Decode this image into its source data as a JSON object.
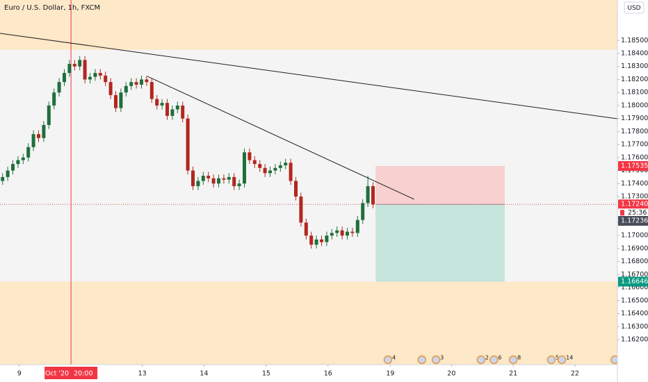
{
  "chart_data": {
    "type": "candlestick",
    "title": "Euro / U.S. Dollar, 1h, FXCM",
    "currency": "USD",
    "up_color": "#1f6f3c",
    "down_color": "#b3261e",
    "xlim": [
      0,
      240
    ],
    "ylim": [
      1.16008,
      1.18811
    ],
    "grid": false,
    "xticks": [
      {
        "value": 7.5,
        "label": "9"
      },
      {
        "value": 55.3,
        "label": "13"
      },
      {
        "value": 79.3,
        "label": "14"
      },
      {
        "value": 103.5,
        "label": "15"
      },
      {
        "value": 127.5,
        "label": "16"
      },
      {
        "value": 151.7,
        "label": "19"
      },
      {
        "value": 175.5,
        "label": "20"
      },
      {
        "value": 199.5,
        "label": "21"
      },
      {
        "value": 223.5,
        "label": "22"
      }
    ],
    "yticks": [
      {
        "value": 1.162,
        "label": "1.16200"
      },
      {
        "value": 1.163,
        "label": "1.16300"
      },
      {
        "value": 1.164,
        "label": "1.16400"
      },
      {
        "value": 1.165,
        "label": "1.16500"
      },
      {
        "value": 1.166,
        "label": "1.16600"
      },
      {
        "value": 1.167,
        "label": "1.16700"
      },
      {
        "value": 1.168,
        "label": "1.16800"
      },
      {
        "value": 1.169,
        "label": "1.16900"
      },
      {
        "value": 1.17,
        "label": "1.17000"
      },
      {
        "value": 1.171,
        "label": "1.17100"
      },
      {
        "value": 1.172,
        "label": "1.17200"
      },
      {
        "value": 1.173,
        "label": "1.17300"
      },
      {
        "value": 1.174,
        "label": "1.17400"
      },
      {
        "value": 1.175,
        "label": "1.17500"
      },
      {
        "value": 1.176,
        "label": "1.17600"
      },
      {
        "value": 1.177,
        "label": "1.17700"
      },
      {
        "value": 1.178,
        "label": "1.17800"
      },
      {
        "value": 1.179,
        "label": "1.17900"
      },
      {
        "value": 1.18,
        "label": "1.18000"
      },
      {
        "value": 1.181,
        "label": "1.18100"
      },
      {
        "value": 1.182,
        "label": "1.18200"
      },
      {
        "value": 1.183,
        "label": "1.18300"
      },
      {
        "value": 1.184,
        "label": "1.18400"
      },
      {
        "value": 1.185,
        "label": "1.18500"
      }
    ],
    "x": [
      1,
      3,
      5,
      7,
      9,
      11,
      13,
      15,
      17,
      19,
      21,
      23,
      25,
      27,
      29,
      31,
      33,
      35,
      37,
      39,
      41,
      43,
      45,
      47,
      49,
      51,
      53,
      55,
      57,
      59,
      61,
      63,
      65,
      67,
      69,
      71,
      73,
      75,
      77,
      79,
      81,
      83,
      85,
      87,
      89,
      91,
      93,
      95,
      97,
      99,
      101,
      103,
      105,
      107,
      109,
      111,
      113,
      115,
      117,
      119,
      121,
      123,
      125,
      127,
      129,
      131,
      133,
      135,
      137,
      139,
      141,
      143,
      145
    ],
    "open": [
      1.1742,
      1.1745,
      1.175,
      1.1755,
      1.1758,
      1.176,
      1.1768,
      1.1778,
      1.1775,
      1.1785,
      1.18,
      1.181,
      1.1818,
      1.1825,
      1.1832,
      1.183,
      1.1835,
      1.182,
      1.1822,
      1.1825,
      1.1823,
      1.1818,
      1.1808,
      1.1798,
      1.181,
      1.1815,
      1.1818,
      1.1816,
      1.182,
      1.1818,
      1.1805,
      1.18,
      1.1802,
      1.1792,
      1.1797,
      1.18,
      1.179,
      1.175,
      1.1738,
      1.1742,
      1.1746,
      1.1744,
      1.174,
      1.1744,
      1.1743,
      1.1745,
      1.1738,
      1.174,
      1.1764,
      1.1758,
      1.1755,
      1.1752,
      1.1748,
      1.175,
      1.1752,
      1.1754,
      1.1756,
      1.1742,
      1.173,
      1.171,
      1.17,
      1.1693,
      1.1697,
      1.1695,
      1.17,
      1.1702,
      1.1704,
      1.17,
      1.1703,
      1.1702,
      1.1712,
      1.1725,
      1.1738
    ],
    "high": [
      1.1748,
      1.1753,
      1.1758,
      1.1761,
      1.1763,
      1.1771,
      1.1781,
      1.1781,
      1.1788,
      1.1803,
      1.1813,
      1.1821,
      1.1828,
      1.1835,
      1.1835,
      1.1838,
      1.1838,
      1.1825,
      1.1828,
      1.1828,
      1.1826,
      1.1821,
      1.1811,
      1.1813,
      1.1818,
      1.1821,
      1.1821,
      1.1823,
      1.1823,
      1.1821,
      1.1808,
      1.1805,
      1.1805,
      1.18,
      1.1803,
      1.1803,
      1.1793,
      1.1753,
      1.1745,
      1.1749,
      1.1749,
      1.1747,
      1.1747,
      1.1747,
      1.1748,
      1.1748,
      1.1743,
      1.1767,
      1.1767,
      1.1761,
      1.1758,
      1.1755,
      1.1753,
      1.1755,
      1.1757,
      1.1759,
      1.1759,
      1.1745,
      1.1733,
      1.1713,
      1.1703,
      1.17,
      1.17,
      1.1703,
      1.1705,
      1.1707,
      1.1707,
      1.1706,
      1.1706,
      1.1715,
      1.1728,
      1.1746,
      1.1741
    ],
    "low": [
      1.1739,
      1.1742,
      1.1747,
      1.1752,
      1.1755,
      1.1757,
      1.1765,
      1.1772,
      1.1772,
      1.1782,
      1.1797,
      1.1807,
      1.1815,
      1.1822,
      1.1827,
      1.1827,
      1.1817,
      1.1817,
      1.1819,
      1.182,
      1.1815,
      1.1805,
      1.1795,
      1.1795,
      1.1807,
      1.1812,
      1.1813,
      1.1813,
      1.1815,
      1.1802,
      1.1797,
      1.1797,
      1.1789,
      1.1789,
      1.1794,
      1.1787,
      1.1747,
      1.1735,
      1.1735,
      1.1739,
      1.1741,
      1.1737,
      1.1737,
      1.174,
      1.174,
      1.1735,
      1.1735,
      1.1737,
      1.1755,
      1.1752,
      1.1749,
      1.1745,
      1.1745,
      1.1747,
      1.1749,
      1.1751,
      1.1739,
      1.1727,
      1.1707,
      1.1697,
      1.169,
      1.169,
      1.1692,
      1.1692,
      1.1697,
      1.1699,
      1.1697,
      1.1697,
      1.1699,
      1.1699,
      1.1709,
      1.1722,
      1.1721
    ],
    "close": [
      1.1745,
      1.175,
      1.1755,
      1.1758,
      1.176,
      1.1768,
      1.1778,
      1.1775,
      1.1785,
      1.18,
      1.181,
      1.1818,
      1.1825,
      1.1832,
      1.183,
      1.1835,
      1.182,
      1.1822,
      1.1825,
      1.1823,
      1.1818,
      1.1808,
      1.1798,
      1.181,
      1.1815,
      1.1818,
      1.1816,
      1.182,
      1.1818,
      1.1805,
      1.18,
      1.1802,
      1.1792,
      1.1797,
      1.18,
      1.179,
      1.175,
      1.1738,
      1.1742,
      1.1746,
      1.1744,
      1.174,
      1.1744,
      1.1743,
      1.1745,
      1.1738,
      1.174,
      1.1764,
      1.1758,
      1.1755,
      1.1752,
      1.1748,
      1.175,
      1.1752,
      1.1754,
      1.1756,
      1.1742,
      1.173,
      1.171,
      1.17,
      1.1693,
      1.1697,
      1.1695,
      1.17,
      1.1702,
      1.1704,
      1.17,
      1.1703,
      1.1702,
      1.1712,
      1.1725,
      1.1738,
      1.1724
    ],
    "zones": [
      {
        "from": 1.18428,
        "to": 1.18811,
        "color": "#fde8c8"
      },
      {
        "from": 1.16008,
        "to": 1.16646,
        "color": "#fde8c8"
      }
    ],
    "trendlines": [
      {
        "x": [
          0,
          240
        ],
        "y": [
          1.18555,
          1.17898
        ]
      },
      {
        "x": [
          57.3,
          161
        ],
        "y": [
          1.18224,
          1.17279
        ]
      }
    ],
    "position": {
      "x": [
        146,
        196.2
      ],
      "stop": {
        "value": 1.17535,
        "label": "1.17535"
      },
      "entry": {
        "value": 1.1724,
        "label": "1.17240"
      },
      "target": {
        "value": 1.16646,
        "label": "1.16646"
      },
      "stop_color": "#f7d0d0",
      "target_color": "#c5e5dd"
    },
    "last_price": {
      "value": 1.17236,
      "label": "1.17236"
    },
    "countdown": "25:36",
    "marker": {
      "x": 27.6,
      "date": "09 Oct '20",
      "time": "20:00"
    },
    "events": [
      {
        "x": 150.8,
        "label": "4"
      },
      {
        "x": 164
      },
      {
        "x": 169.5,
        "label": "3"
      },
      {
        "x": 187,
        "label": "2"
      },
      {
        "x": 192,
        "label": "6"
      },
      {
        "x": 199.5,
        "label": "8"
      },
      {
        "x": 214.3,
        "label": "5"
      },
      {
        "x": 218.4,
        "label": "14"
      },
      {
        "x": 239
      }
    ]
  }
}
